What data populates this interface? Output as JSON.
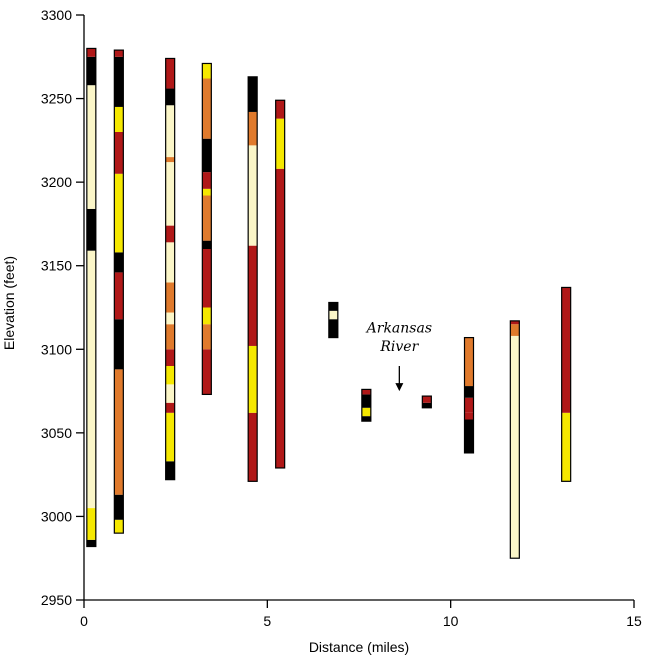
{
  "chart_data": {
    "type": "stratigraphic-columns",
    "title": "",
    "xlabel": "Distance (miles)",
    "ylabel": "Elevation (feet)",
    "xlim": [
      0,
      15
    ],
    "ylim": [
      2950,
      3300
    ],
    "xticks": [
      0,
      5,
      10,
      15
    ],
    "yticks": [
      2950,
      3000,
      3050,
      3100,
      3150,
      3200,
      3250,
      3300
    ],
    "grid": false,
    "colors": {
      "black": "#000000",
      "darkred": "#b01818",
      "orange": "#e07a2c",
      "yellow": "#f5e800",
      "cream": "#fbf6c8"
    },
    "columns": [
      {
        "x": 0.2,
        "segments": [
          {
            "from": 2982,
            "to": 2986,
            "color": "black"
          },
          {
            "from": 2986,
            "to": 3005,
            "color": "yellow"
          },
          {
            "from": 3005,
            "to": 3159,
            "color": "cream"
          },
          {
            "from": 3159,
            "to": 3184,
            "color": "black"
          },
          {
            "from": 3184,
            "to": 3258,
            "color": "cream"
          },
          {
            "from": 3258,
            "to": 3275,
            "color": "black"
          },
          {
            "from": 3275,
            "to": 3280,
            "color": "darkred"
          }
        ]
      },
      {
        "x": 0.95,
        "segments": [
          {
            "from": 2990,
            "to": 2998,
            "color": "yellow"
          },
          {
            "from": 2998,
            "to": 3013,
            "color": "black"
          },
          {
            "from": 3013,
            "to": 3088,
            "color": "orange"
          },
          {
            "from": 3088,
            "to": 3118,
            "color": "black"
          },
          {
            "from": 3118,
            "to": 3146,
            "color": "darkred"
          },
          {
            "from": 3146,
            "to": 3158,
            "color": "black"
          },
          {
            "from": 3158,
            "to": 3205,
            "color": "yellow"
          },
          {
            "from": 3205,
            "to": 3230,
            "color": "darkred"
          },
          {
            "from": 3230,
            "to": 3245,
            "color": "yellow"
          },
          {
            "from": 3245,
            "to": 3275,
            "color": "black"
          },
          {
            "from": 3275,
            "to": 3279,
            "color": "darkred"
          }
        ]
      },
      {
        "x": 2.35,
        "segments": [
          {
            "from": 3022,
            "to": 3033,
            "color": "black"
          },
          {
            "from": 3033,
            "to": 3062,
            "color": "yellow"
          },
          {
            "from": 3062,
            "to": 3068,
            "color": "darkred"
          },
          {
            "from": 3068,
            "to": 3079,
            "color": "cream"
          },
          {
            "from": 3079,
            "to": 3090,
            "color": "yellow"
          },
          {
            "from": 3090,
            "to": 3100,
            "color": "darkred"
          },
          {
            "from": 3100,
            "to": 3115,
            "color": "orange"
          },
          {
            "from": 3115,
            "to": 3122,
            "color": "cream"
          },
          {
            "from": 3122,
            "to": 3140,
            "color": "orange"
          },
          {
            "from": 3140,
            "to": 3164,
            "color": "cream"
          },
          {
            "from": 3164,
            "to": 3174,
            "color": "darkred"
          },
          {
            "from": 3174,
            "to": 3212,
            "color": "cream"
          },
          {
            "from": 3212,
            "to": 3215,
            "color": "orange"
          },
          {
            "from": 3215,
            "to": 3246,
            "color": "cream"
          },
          {
            "from": 3246,
            "to": 3256,
            "color": "black"
          },
          {
            "from": 3256,
            "to": 3274,
            "color": "darkred"
          }
        ]
      },
      {
        "x": 3.35,
        "segments": [
          {
            "from": 3073,
            "to": 3100,
            "color": "darkred"
          },
          {
            "from": 3100,
            "to": 3115,
            "color": "orange"
          },
          {
            "from": 3115,
            "to": 3125,
            "color": "yellow"
          },
          {
            "from": 3125,
            "to": 3160,
            "color": "darkred"
          },
          {
            "from": 3160,
            "to": 3165,
            "color": "black"
          },
          {
            "from": 3165,
            "to": 3192,
            "color": "orange"
          },
          {
            "from": 3192,
            "to": 3196,
            "color": "yellow"
          },
          {
            "from": 3196,
            "to": 3206,
            "color": "darkred"
          },
          {
            "from": 3206,
            "to": 3226,
            "color": "black"
          },
          {
            "from": 3226,
            "to": 3262,
            "color": "orange"
          },
          {
            "from": 3262,
            "to": 3271,
            "color": "yellow"
          }
        ]
      },
      {
        "x": 4.6,
        "segments": [
          {
            "from": 3021,
            "to": 3062,
            "color": "darkred"
          },
          {
            "from": 3062,
            "to": 3102,
            "color": "yellow"
          },
          {
            "from": 3102,
            "to": 3162,
            "color": "darkred"
          },
          {
            "from": 3162,
            "to": 3222,
            "color": "cream"
          },
          {
            "from": 3222,
            "to": 3242,
            "color": "orange"
          },
          {
            "from": 3242,
            "to": 3263,
            "color": "black"
          }
        ]
      },
      {
        "x": 5.35,
        "segments": [
          {
            "from": 3029,
            "to": 3208,
            "color": "darkred"
          },
          {
            "from": 3208,
            "to": 3238,
            "color": "yellow"
          },
          {
            "from": 3238,
            "to": 3249,
            "color": "darkred"
          }
        ]
      },
      {
        "x": 6.8,
        "segments": [
          {
            "from": 3107,
            "to": 3118,
            "color": "black"
          },
          {
            "from": 3118,
            "to": 3123,
            "color": "cream"
          },
          {
            "from": 3123,
            "to": 3128,
            "color": "black"
          }
        ]
      },
      {
        "x": 7.7,
        "segments": [
          {
            "from": 3057,
            "to": 3060,
            "color": "black"
          },
          {
            "from": 3060,
            "to": 3065,
            "color": "yellow"
          },
          {
            "from": 3065,
            "to": 3073,
            "color": "black"
          },
          {
            "from": 3073,
            "to": 3076,
            "color": "darkred"
          }
        ]
      },
      {
        "x": 9.35,
        "segments": [
          {
            "from": 3065,
            "to": 3068,
            "color": "black"
          },
          {
            "from": 3068,
            "to": 3072,
            "color": "darkred"
          }
        ]
      },
      {
        "x": 10.5,
        "segments": [
          {
            "from": 3038,
            "to": 3058,
            "color": "black"
          },
          {
            "from": 3058,
            "to": 3062,
            "color": "darkred"
          },
          {
            "from": 3062,
            "to": 3071,
            "color": "darkred"
          },
          {
            "from": 3071,
            "to": 3078,
            "color": "black"
          },
          {
            "from": 3078,
            "to": 3107,
            "color": "orange"
          }
        ]
      },
      {
        "x": 11.75,
        "segments": [
          {
            "from": 2975,
            "to": 3108,
            "color": "cream"
          },
          {
            "from": 3108,
            "to": 3115,
            "color": "orange"
          },
          {
            "from": 3115,
            "to": 3117,
            "color": "darkred"
          }
        ]
      },
      {
        "x": 13.15,
        "segments": [
          {
            "from": 3021,
            "to": 3062,
            "color": "yellow"
          },
          {
            "from": 3062,
            "to": 3137,
            "color": "darkred"
          }
        ]
      }
    ],
    "annotations": [
      {
        "text": "Arkansas",
        "x": 8.6,
        "y": 3110
      },
      {
        "text": "River",
        "x": 8.6,
        "y": 3099
      }
    ],
    "arrow": {
      "x": 8.6,
      "y_from": 3090,
      "y_to": 3075
    }
  }
}
